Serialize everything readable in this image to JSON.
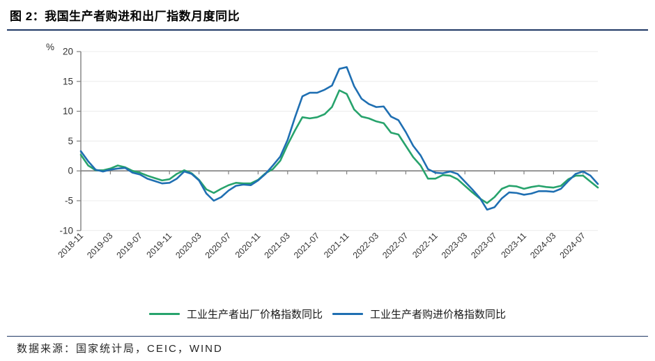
{
  "title": "图 2：我国生产者购进和出厂指数月度同比",
  "colors": {
    "rule": "#1f3864",
    "green": "#27a36c",
    "blue": "#1f6fb2",
    "axis": "#7f7f7f",
    "grid": "#ececec",
    "tick_text": "#333333"
  },
  "legend": [
    {
      "label": "工业生产者出厂价格指数同比",
      "color_key": "green"
    },
    {
      "label": "工业生产者购进价格指数同比",
      "color_key": "blue"
    }
  ],
  "footer": {
    "source": "数据来源：国家统计局，CEIC，WIND"
  },
  "chart_data": {
    "type": "line",
    "title": "图 2：我国生产者购进和出厂指数月度同比",
    "ylabel": "%",
    "ylim": [
      -10,
      20
    ],
    "y_ticks": [
      20,
      15,
      10,
      5,
      0,
      -5,
      -10
    ],
    "grid": "horizontal",
    "legend_position": "bottom",
    "x_tick_labels": [
      "2018-11",
      "2019-03",
      "2019-07",
      "2019-11",
      "2020-03",
      "2020-07",
      "2020-11",
      "2021-03",
      "2021-07",
      "2021-11",
      "2022-03",
      "2022-07",
      "2022-11",
      "2023-03",
      "2023-07",
      "2023-11",
      "2024-03",
      "2024-07"
    ],
    "x": [
      "2018-11",
      "2018-12",
      "2019-01",
      "2019-02",
      "2019-03",
      "2019-04",
      "2019-05",
      "2019-06",
      "2019-07",
      "2019-08",
      "2019-09",
      "2019-10",
      "2019-11",
      "2019-12",
      "2020-01",
      "2020-02",
      "2020-03",
      "2020-04",
      "2020-05",
      "2020-06",
      "2020-07",
      "2020-08",
      "2020-09",
      "2020-10",
      "2020-11",
      "2020-12",
      "2021-01",
      "2021-02",
      "2021-03",
      "2021-04",
      "2021-05",
      "2021-06",
      "2021-07",
      "2021-08",
      "2021-09",
      "2021-10",
      "2021-11",
      "2021-12",
      "2022-01",
      "2022-02",
      "2022-03",
      "2022-04",
      "2022-05",
      "2022-06",
      "2022-07",
      "2022-08",
      "2022-09",
      "2022-10",
      "2022-11",
      "2022-12",
      "2023-01",
      "2023-02",
      "2023-03",
      "2023-04",
      "2023-05",
      "2023-06",
      "2023-07",
      "2023-08",
      "2023-09",
      "2023-10",
      "2023-11",
      "2023-12",
      "2024-01",
      "2024-02",
      "2024-03",
      "2024-04",
      "2024-05",
      "2024-06",
      "2024-07",
      "2024-08",
      "2024-09"
    ],
    "series": [
      {
        "name": "工业生产者出厂价格指数同比",
        "color_key": "green",
        "values": [
          2.7,
          0.9,
          0.1,
          0.1,
          0.4,
          0.9,
          0.6,
          0.0,
          -0.3,
          -0.8,
          -1.2,
          -1.6,
          -1.4,
          -0.5,
          0.1,
          -0.4,
          -1.5,
          -3.1,
          -3.7,
          -3.0,
          -2.4,
          -2.0,
          -2.1,
          -2.1,
          -1.5,
          -0.4,
          0.3,
          1.7,
          4.4,
          6.8,
          9.0,
          8.8,
          9.0,
          9.5,
          10.7,
          13.5,
          12.9,
          10.3,
          9.1,
          8.8,
          8.3,
          8.0,
          6.4,
          6.1,
          4.2,
          2.3,
          0.9,
          -1.3,
          -1.3,
          -0.7,
          -0.8,
          -1.4,
          -2.5,
          -3.6,
          -4.6,
          -5.4,
          -4.4,
          -3.0,
          -2.5,
          -2.6,
          -3.0,
          -2.7,
          -2.5,
          -2.7,
          -2.8,
          -2.5,
          -1.4,
          -0.8,
          -0.8,
          -1.8,
          -2.8
        ]
      },
      {
        "name": "工业生产者购进价格指数同比",
        "color_key": "blue",
        "values": [
          3.3,
          1.6,
          0.2,
          -0.1,
          0.2,
          0.4,
          0.5,
          -0.3,
          -0.6,
          -1.3,
          -1.7,
          -2.1,
          -2.0,
          -1.3,
          -0.1,
          -0.5,
          -1.6,
          -3.8,
          -5.0,
          -4.4,
          -3.3,
          -2.5,
          -2.3,
          -2.4,
          -1.6,
          -0.5,
          0.9,
          2.4,
          5.2,
          9.0,
          12.5,
          13.1,
          13.1,
          13.6,
          14.3,
          17.1,
          17.4,
          14.2,
          12.1,
          11.2,
          10.7,
          10.8,
          9.1,
          8.5,
          6.5,
          4.2,
          2.6,
          0.3,
          -0.3,
          -0.4,
          -0.1,
          -0.5,
          -1.8,
          -3.1,
          -4.5,
          -6.5,
          -6.1,
          -4.6,
          -3.6,
          -3.7,
          -4.0,
          -3.8,
          -3.4,
          -3.4,
          -3.5,
          -3.0,
          -1.7,
          -0.5,
          -0.1,
          -0.8,
          -2.2
        ]
      }
    ]
  }
}
